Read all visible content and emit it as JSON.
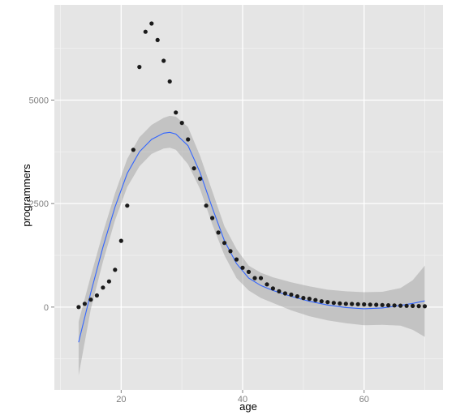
{
  "chart_data": {
    "type": "scatter",
    "title": "",
    "xlabel": "age",
    "ylabel": "programmers",
    "xlim": [
      9,
      73
    ],
    "ylim": [
      -2000,
      7300
    ],
    "grid": true,
    "legend": "none",
    "x_ticks": [
      20,
      40,
      60
    ],
    "y_ticks": [
      0,
      2500,
      5000
    ],
    "x_tick_labels": [
      "20",
      "40",
      "60"
    ],
    "y_tick_labels": [
      "0",
      "2500",
      "5000"
    ],
    "colors": {
      "panel": "#e5e5e5",
      "grid_major": "#ffffff",
      "grid_minor": "#f2f2f2",
      "points": "#1a1a1a",
      "smooth_line": "#3366ff",
      "confidence_band": "#999999"
    },
    "series": [
      {
        "kind": "points",
        "x": [
          13,
          14,
          15,
          16,
          17,
          18,
          19,
          20,
          21,
          22,
          23,
          24,
          25,
          26,
          27,
          28,
          29,
          30,
          31,
          32,
          33,
          34,
          35,
          36,
          37,
          38,
          39,
          40,
          41,
          42,
          43,
          44,
          45,
          46,
          47,
          48,
          49,
          50,
          51,
          52,
          53,
          54,
          55,
          56,
          57,
          58,
          59,
          60,
          61,
          62,
          63,
          64,
          65,
          66,
          67,
          68,
          69,
          70
        ],
        "y": [
          0,
          80,
          180,
          280,
          470,
          620,
          900,
          1600,
          2450,
          3800,
          5800,
          6650,
          6850,
          6450,
          5950,
          5450,
          4700,
          4450,
          4050,
          3350,
          3100,
          2450,
          2150,
          1800,
          1550,
          1350,
          1150,
          950,
          850,
          700,
          700,
          550,
          450,
          380,
          330,
          300,
          260,
          220,
          200,
          170,
          140,
          120,
          100,
          90,
          80,
          75,
          70,
          65,
          60,
          55,
          50,
          45,
          40,
          35,
          30,
          28,
          25,
          20
        ]
      },
      {
        "kind": "smooth",
        "x": [
          13,
          15,
          17,
          19,
          21,
          23,
          25,
          27,
          28,
          29,
          31,
          33,
          35,
          37,
          39,
          41,
          43,
          45,
          48,
          51,
          54,
          57,
          60,
          63,
          66,
          68,
          70
        ],
        "y": [
          -850,
          350,
          1450,
          2420,
          3230,
          3750,
          4050,
          4200,
          4220,
          4180,
          3900,
          3250,
          2400,
          1600,
          1050,
          700,
          520,
          400,
          260,
          140,
          50,
          -10,
          -40,
          -20,
          40,
          90,
          150
        ],
        "upper": [
          -350,
          750,
          1800,
          2750,
          3580,
          4100,
          4400,
          4570,
          4620,
          4600,
          4350,
          3650,
          2800,
          1950,
          1400,
          1000,
          830,
          720,
          600,
          500,
          420,
          380,
          360,
          370,
          460,
          650,
          1000
        ],
        "lower": [
          -1650,
          -50,
          1100,
          2100,
          2900,
          3400,
          3700,
          3830,
          3850,
          3800,
          3450,
          2850,
          2000,
          1250,
          700,
          400,
          220,
          100,
          -80,
          -220,
          -320,
          -390,
          -440,
          -430,
          -450,
          -550,
          -720
        ]
      }
    ]
  }
}
